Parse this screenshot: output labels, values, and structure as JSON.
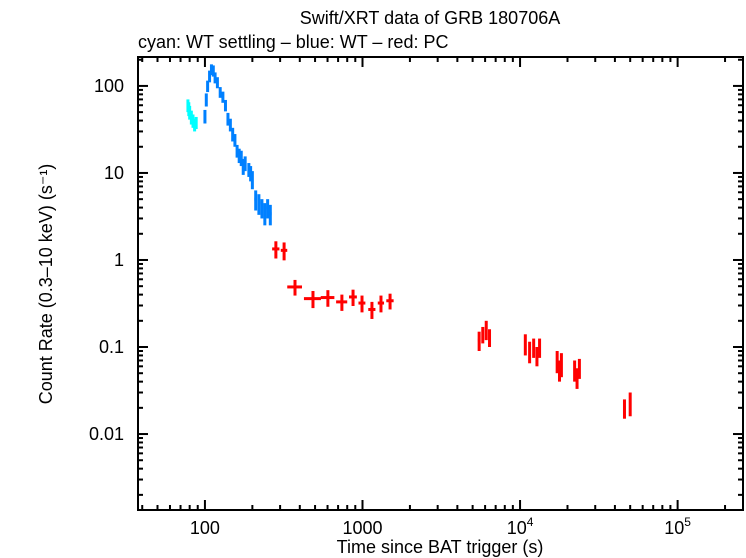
{
  "chart_data": {
    "type": "scatter",
    "title": "Swift/XRT data of GRB 180706A",
    "subtitle": "cyan: WT settling – blue: WT – red: PC",
    "xlabel": "Time since BAT trigger (s)",
    "ylabel": "Count Rate (0.3–10 keV) (s⁻¹)",
    "xscale": "log",
    "yscale": "log",
    "xlim": [
      37.6,
      260000
    ],
    "ylim": [
      0.00134,
      215
    ],
    "x_ticks": [
      {
        "value": 100,
        "label": "100"
      },
      {
        "value": 1000,
        "label": "1000"
      },
      {
        "value": 10000,
        "label": "10",
        "exp": "4"
      },
      {
        "value": 100000,
        "label": "10",
        "exp": "5"
      }
    ],
    "y_ticks": [
      {
        "value": 100,
        "label": "100"
      },
      {
        "value": 10,
        "label": "10"
      },
      {
        "value": 1,
        "label": "1"
      },
      {
        "value": 0.1,
        "label": "0.1"
      },
      {
        "value": 0.01,
        "label": "0.01"
      }
    ],
    "grid": false,
    "series": [
      {
        "name": "WT settling",
        "color": "#00ffff",
        "points": [
          [
            78,
            60,
            0.5,
            10
          ],
          [
            79,
            55,
            0.5,
            10
          ],
          [
            80,
            50,
            0.5,
            9
          ],
          [
            82,
            44,
            0.5,
            8
          ],
          [
            84,
            40,
            0.5,
            7
          ],
          [
            86,
            36,
            0.5,
            6
          ],
          [
            88,
            38,
            0.5,
            6
          ]
        ]
      },
      {
        "name": "WT",
        "color": "#0080ff",
        "points": [
          [
            100,
            45,
            1,
            8
          ],
          [
            102,
            70,
            1,
            12
          ],
          [
            104,
            100,
            1,
            15
          ],
          [
            107,
            130,
            1,
            20
          ],
          [
            110,
            155,
            1.5,
            22
          ],
          [
            113,
            150,
            1.5,
            22
          ],
          [
            116,
            125,
            1.5,
            18
          ],
          [
            120,
            110,
            2,
            16
          ],
          [
            125,
            85,
            2,
            12
          ],
          [
            130,
            75,
            2,
            11
          ],
          [
            135,
            60,
            2,
            9
          ],
          [
            140,
            42,
            2,
            7
          ],
          [
            145,
            36,
            2,
            6
          ],
          [
            150,
            28,
            2,
            5
          ],
          [
            155,
            24,
            2,
            4
          ],
          [
            160,
            18,
            2,
            3
          ],
          [
            165,
            16,
            2,
            3
          ],
          [
            170,
            15,
            2,
            3
          ],
          [
            175,
            12,
            2,
            2.5
          ],
          [
            180,
            13,
            2,
            2.5
          ],
          [
            190,
            11,
            3,
            2
          ],
          [
            195,
            10,
            3,
            2
          ],
          [
            200,
            8.5,
            3,
            2
          ],
          [
            210,
            5,
            4,
            1.3
          ],
          [
            220,
            4.5,
            4,
            1.2
          ],
          [
            230,
            4,
            4,
            1
          ],
          [
            240,
            3.5,
            4,
            1
          ],
          [
            250,
            4,
            5,
            1
          ],
          [
            260,
            3.4,
            5,
            0.9
          ]
        ]
      },
      {
        "name": "PC",
        "color": "#ff0000",
        "points": [
          [
            282,
            1.34,
            15,
            0.3
          ],
          [
            318,
            1.29,
            15,
            0.3
          ],
          [
            373,
            0.49,
            40,
            0.1
          ],
          [
            485,
            0.36,
            60,
            0.08
          ],
          [
            603,
            0.37,
            60,
            0.08
          ],
          [
            740,
            0.33,
            60,
            0.07
          ],
          [
            871,
            0.376,
            50,
            0.08
          ],
          [
            993,
            0.32,
            50,
            0.07
          ],
          [
            1148,
            0.27,
            60,
            0.06
          ],
          [
            1310,
            0.32,
            60,
            0.07
          ],
          [
            1496,
            0.34,
            80,
            0.07
          ],
          [
            5500,
            0.12,
            100,
            0.03
          ],
          [
            5800,
            0.14,
            100,
            0.03
          ],
          [
            6100,
            0.16,
            100,
            0.04
          ],
          [
            6400,
            0.13,
            100,
            0.03
          ],
          [
            10800,
            0.11,
            150,
            0.03
          ],
          [
            11500,
            0.09,
            150,
            0.025
          ],
          [
            12200,
            0.1,
            150,
            0.025
          ],
          [
            12800,
            0.08,
            150,
            0.02
          ],
          [
            13300,
            0.1,
            150,
            0.025
          ],
          [
            17200,
            0.07,
            150,
            0.02
          ],
          [
            17800,
            0.055,
            150,
            0.015
          ],
          [
            18300,
            0.065,
            150,
            0.02
          ],
          [
            22200,
            0.055,
            200,
            0.015
          ],
          [
            23000,
            0.045,
            200,
            0.012
          ],
          [
            23800,
            0.058,
            200,
            0.015
          ],
          [
            46000,
            0.02,
            800,
            0.005
          ],
          [
            50000,
            0.023,
            800,
            0.007
          ]
        ]
      }
    ]
  }
}
